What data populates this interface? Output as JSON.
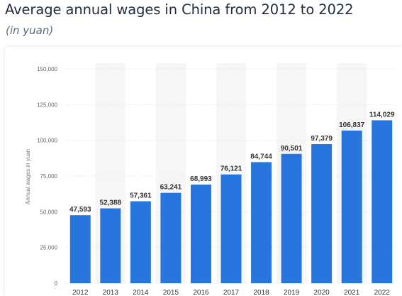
{
  "page": {
    "title": "Average annual wages in China from 2012 to 2022",
    "subtitle": "(in yuan)"
  },
  "colors": {
    "bar": "#2876dd",
    "band": "#f6f6f6",
    "grid": "#e2e2e2"
  },
  "chart_data": {
    "type": "bar",
    "title": "Average annual wages in China from 2012 to 2022",
    "subtitle": "(in yuan)",
    "xlabel": "",
    "ylabel": "Annual wages in yuan",
    "categories": [
      "2012",
      "2013",
      "2014",
      "2015",
      "2016",
      "2017",
      "2018",
      "2019",
      "2020",
      "2021",
      "2022"
    ],
    "values": [
      47593,
      52388,
      57361,
      63241,
      68993,
      76121,
      84744,
      90501,
      97379,
      106837,
      114029
    ],
    "value_labels": [
      "47,593",
      "52,388",
      "57,361",
      "63,241",
      "68,993",
      "76,121",
      "84,744",
      "90,501",
      "97,379",
      "106,837",
      "114,029"
    ],
    "ylim": [
      0,
      150000
    ],
    "yticks": [
      0,
      25000,
      50000,
      75000,
      100000,
      125000,
      150000
    ],
    "ytick_labels": [
      "0",
      "25,000",
      "50,000",
      "75,000",
      "100,000",
      "125,000",
      "150,000"
    ],
    "grid": true,
    "legend": "none"
  }
}
